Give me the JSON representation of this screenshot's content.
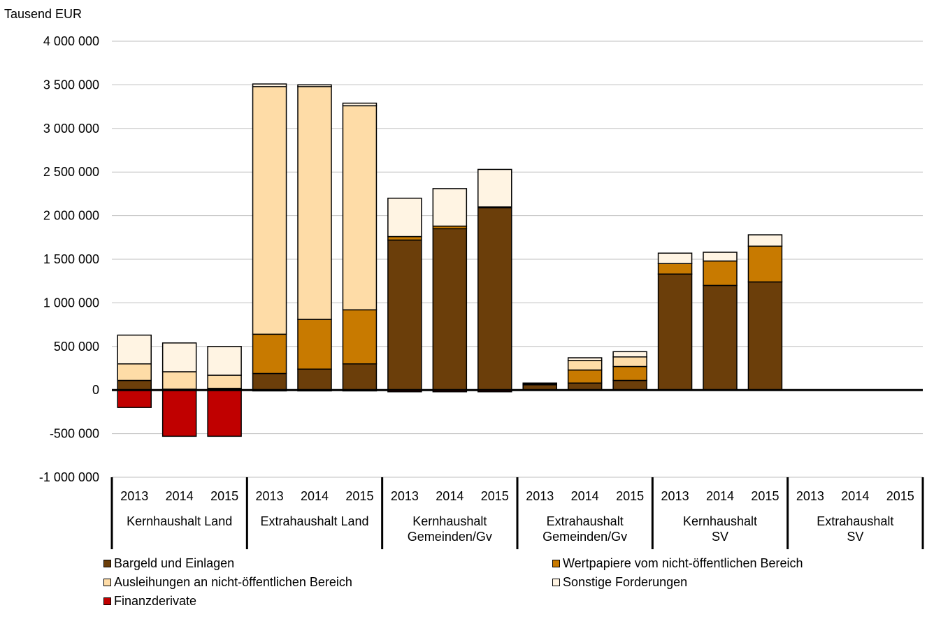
{
  "chart_data": {
    "type": "bar",
    "stacked": true,
    "title": "",
    "ylabel": "Tausend EUR",
    "xlabel": "",
    "ylim": [
      -1000000,
      4000000
    ],
    "yticks": [
      -1000000,
      -500000,
      0,
      500000,
      1000000,
      1500000,
      2000000,
      2500000,
      3000000,
      3500000,
      4000000
    ],
    "ytick_labels": [
      "-1 000 000",
      "-500 000",
      "0",
      "500 000",
      "1 000 000",
      "1 500 000",
      "2 000 000",
      "2 500 000",
      "3 000 000",
      "3 500 000",
      "4 000 000"
    ],
    "grid": true,
    "legend_position": "bottom",
    "groups": [
      {
        "label": "Kernhaushalt Land",
        "years": [
          "2013",
          "2014",
          "2015"
        ]
      },
      {
        "label": "Extrahaushalt Land",
        "years": [
          "2013",
          "2014",
          "2015"
        ]
      },
      {
        "label": "Kernhaushalt Gemeinden/Gv",
        "years": [
          "2013",
          "2014",
          "2015"
        ]
      },
      {
        "label": "Extrahaushalt Gemeinden/Gv",
        "years": [
          "2013",
          "2014",
          "2015"
        ]
      },
      {
        "label": "Kernhaushalt SV",
        "years": [
          "2013",
          "2014",
          "2015"
        ]
      },
      {
        "label": "Extrahaushalt SV",
        "years": [
          "2013",
          "2014",
          "2015"
        ]
      }
    ],
    "series": [
      {
        "name": "Bargeld und Einlagen",
        "color": "#6B3E0A",
        "values": [
          110000,
          10000,
          20000,
          190000,
          240000,
          300000,
          1720000,
          1850000,
          2090000,
          60000,
          80000,
          110000,
          1330000,
          1200000,
          1240000,
          0,
          0,
          0
        ]
      },
      {
        "name": "Wertpapiere vom nicht-öffentlichen Bereich",
        "color": "#C87A00",
        "values": [
          0,
          0,
          0,
          450000,
          570000,
          620000,
          40000,
          30000,
          10000,
          10000,
          150000,
          160000,
          120000,
          280000,
          410000,
          0,
          0,
          0
        ]
      },
      {
        "name": "Ausleihungen an nicht-öffentlichen Bereich",
        "color": "#FEDCA7",
        "values": [
          190000,
          200000,
          150000,
          2840000,
          2670000,
          2340000,
          0,
          0,
          0,
          0,
          110000,
          110000,
          0,
          0,
          0,
          0,
          0,
          0
        ]
      },
      {
        "name": "Sonstige Forderungen",
        "color": "#FFF4E3",
        "values": [
          330000,
          330000,
          330000,
          30000,
          20000,
          30000,
          440000,
          430000,
          430000,
          10000,
          30000,
          60000,
          120000,
          100000,
          130000,
          0,
          0,
          0
        ]
      },
      {
        "name": "Finanzderivate",
        "color": "#C00000",
        "values": [
          -200000,
          -530000,
          -530000,
          -10000,
          -10000,
          -10000,
          -20000,
          -20000,
          -20000,
          0,
          0,
          0,
          0,
          0,
          0,
          0,
          0,
          0
        ]
      }
    ]
  },
  "legend_layout": [
    {
      "series": 0,
      "col": 0,
      "row": 0
    },
    {
      "series": 1,
      "col": 1,
      "row": 0
    },
    {
      "series": 2,
      "col": 0,
      "row": 1
    },
    {
      "series": 3,
      "col": 1,
      "row": 1
    },
    {
      "series": 4,
      "col": 0,
      "row": 2
    }
  ]
}
